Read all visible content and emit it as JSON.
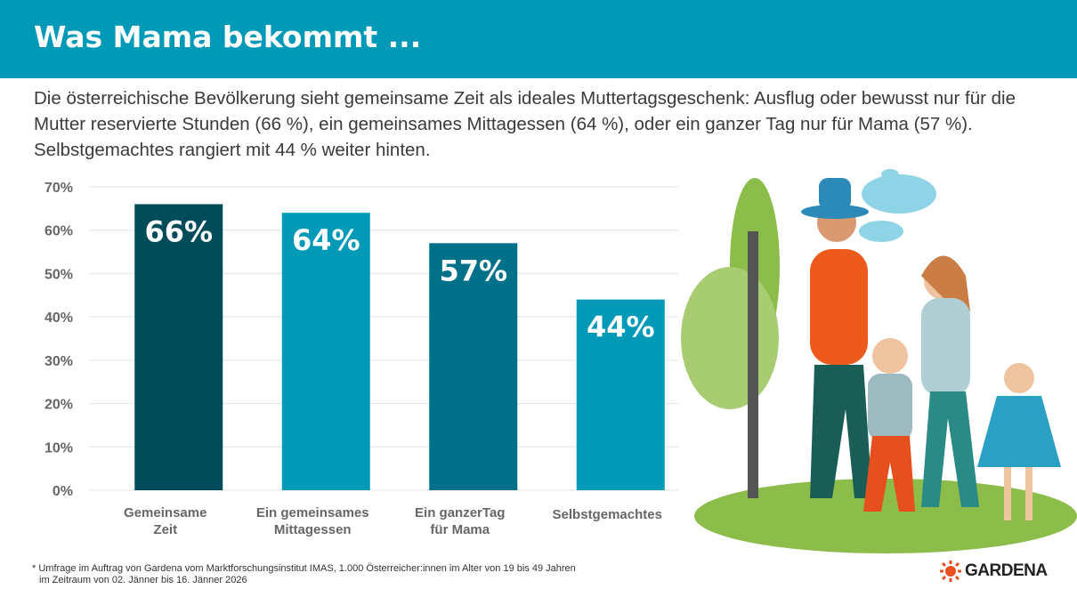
{
  "header": {
    "title": "Was Mama bekommt ..."
  },
  "subtitle": "Die österreichische Bevölkerung sieht gemeinsame Zeit als ideales Muttertagsgeschenk: Ausflug oder bewusst nur für die Mutter reservierte Stunden (66 %), ein gemeinsames Mittagessen (64 %), oder ein ganzer Tag nur für Mama (57 %). Selbstgemachtes rangiert mit 44 % weiter hinten.",
  "footnote": {
    "line1": "* Umfrage im Auftrag von Gardena vom Marktforschungsinstitut IMAS, 1.000 Österreicher:innen im Alter von 19 bis 49 Jahren",
    "line2": "im Zeitraum von 02. Jänner bis 16. Jänner 2026"
  },
  "logo": {
    "text": "GARDENA",
    "color": "#e8501e"
  },
  "chart_data": {
    "type": "bar",
    "categories": [
      [
        "Gemeinsame",
        "Zeit"
      ],
      [
        "Ein gemeinsames",
        "Mittagessen"
      ],
      [
        "Ein ganzerTag",
        "für Mama"
      ],
      [
        "Selbstgemachtes"
      ]
    ],
    "values": [
      66,
      64,
      57,
      44
    ],
    "data_labels": [
      "66%",
      "64%",
      "57%",
      "44%"
    ],
    "colors": [
      "#004c5a",
      "#0099b7",
      "#007189",
      "#0099b7"
    ],
    "ylim": [
      0,
      70
    ],
    "yticks": [
      "0%",
      "10%",
      "20%",
      "30%",
      "40%",
      "50%",
      "60%",
      "70%"
    ],
    "grid": true
  }
}
